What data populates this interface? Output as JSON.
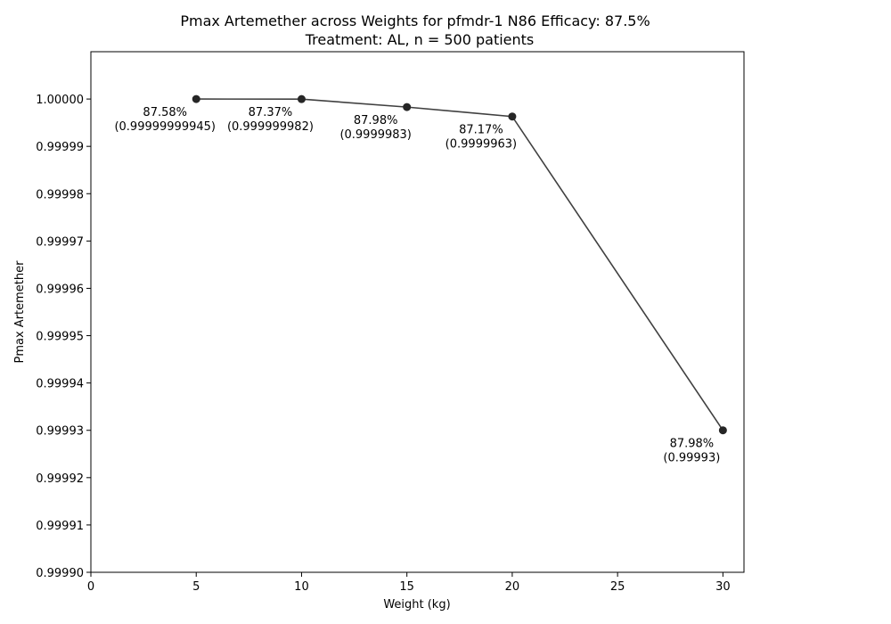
{
  "chart_data": {
    "type": "line",
    "title": "Pmax Artemether across Weights for pfmdr-1 N86 Efficacy: 87.5%",
    "subtitle": "Treatment: AL, n = 500 patients",
    "xlabel": "Weight (kg)",
    "ylabel": "Pmax Artemether",
    "xlim": [
      0,
      31
    ],
    "ylim": [
      0.9999,
      1.00001
    ],
    "xticks": [
      "0",
      "5",
      "10",
      "15",
      "20",
      "25",
      "30"
    ],
    "yticks": [
      "0.99990",
      "0.99991",
      "0.99992",
      "0.99993",
      "0.99994",
      "0.99995",
      "0.99996",
      "0.99997",
      "0.99998",
      "0.99999",
      "1.00000"
    ],
    "grid": false,
    "line_color": "#404040",
    "marker_color": "#262626",
    "series": [
      {
        "x": [
          5,
          10,
          15,
          20,
          30
        ],
        "y": [
          0.99999999945,
          0.999999982,
          0.9999983,
          0.9999963,
          0.99993
        ],
        "labels": [
          {
            "efficacy": "87.58%",
            "value": "(0.99999999945)"
          },
          {
            "efficacy": "87.37%",
            "value": "(0.999999982)"
          },
          {
            "efficacy": "87.98%",
            "value": "(0.9999983)"
          },
          {
            "efficacy": "87.17%",
            "value": "(0.9999963)"
          },
          {
            "efficacy": "87.98%",
            "value": "(0.99993)"
          }
        ]
      }
    ]
  }
}
